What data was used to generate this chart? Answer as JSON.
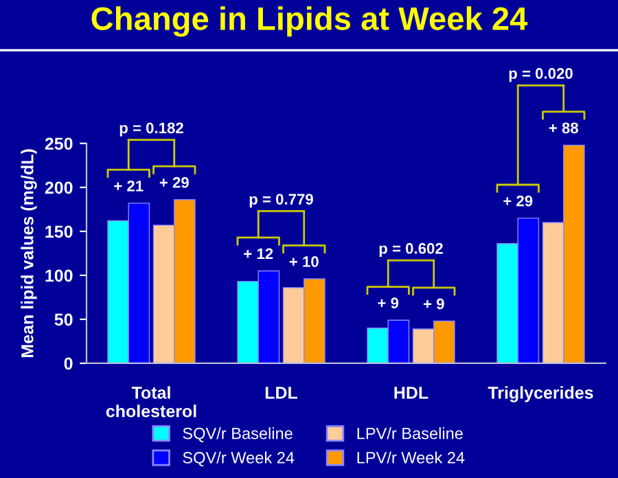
{
  "chart_data": {
    "type": "bar",
    "title": "Change in Lipids at Week 24",
    "ylabel": "Mean lipid values (mg/dL)",
    "categories": [
      "Total\ncholesterol",
      "LDL",
      "HDL",
      "Triglycerides"
    ],
    "series": [
      {
        "name": "SQV/r Baseline",
        "color": "#00ffff",
        "values": [
          162,
          93,
          40,
          136
        ]
      },
      {
        "name": "SQV/r Week 24",
        "color": "#0000ff",
        "values": [
          182,
          105,
          49,
          165
        ]
      },
      {
        "name": "LPV/r Baseline",
        "color": "#ffcc99",
        "values": [
          157,
          86,
          39,
          160
        ]
      },
      {
        "name": "LPV/r Week 24",
        "color": "#ff9900",
        "values": [
          186,
          96,
          48,
          248
        ]
      }
    ],
    "annotations": [
      "p = 0.182",
      "+ 21",
      "+ 29",
      "p = 0.779",
      "+ 12",
      "+ 10",
      "p = 0.602",
      "+ 9",
      "+ 9",
      "p = 0.020",
      "+ 29",
      "+ 88"
    ],
    "ylim": [
      0,
      250
    ],
    "yticks": [
      0,
      50,
      100,
      150,
      200,
      250
    ],
    "grid": false,
    "legend": "bottom"
  }
}
